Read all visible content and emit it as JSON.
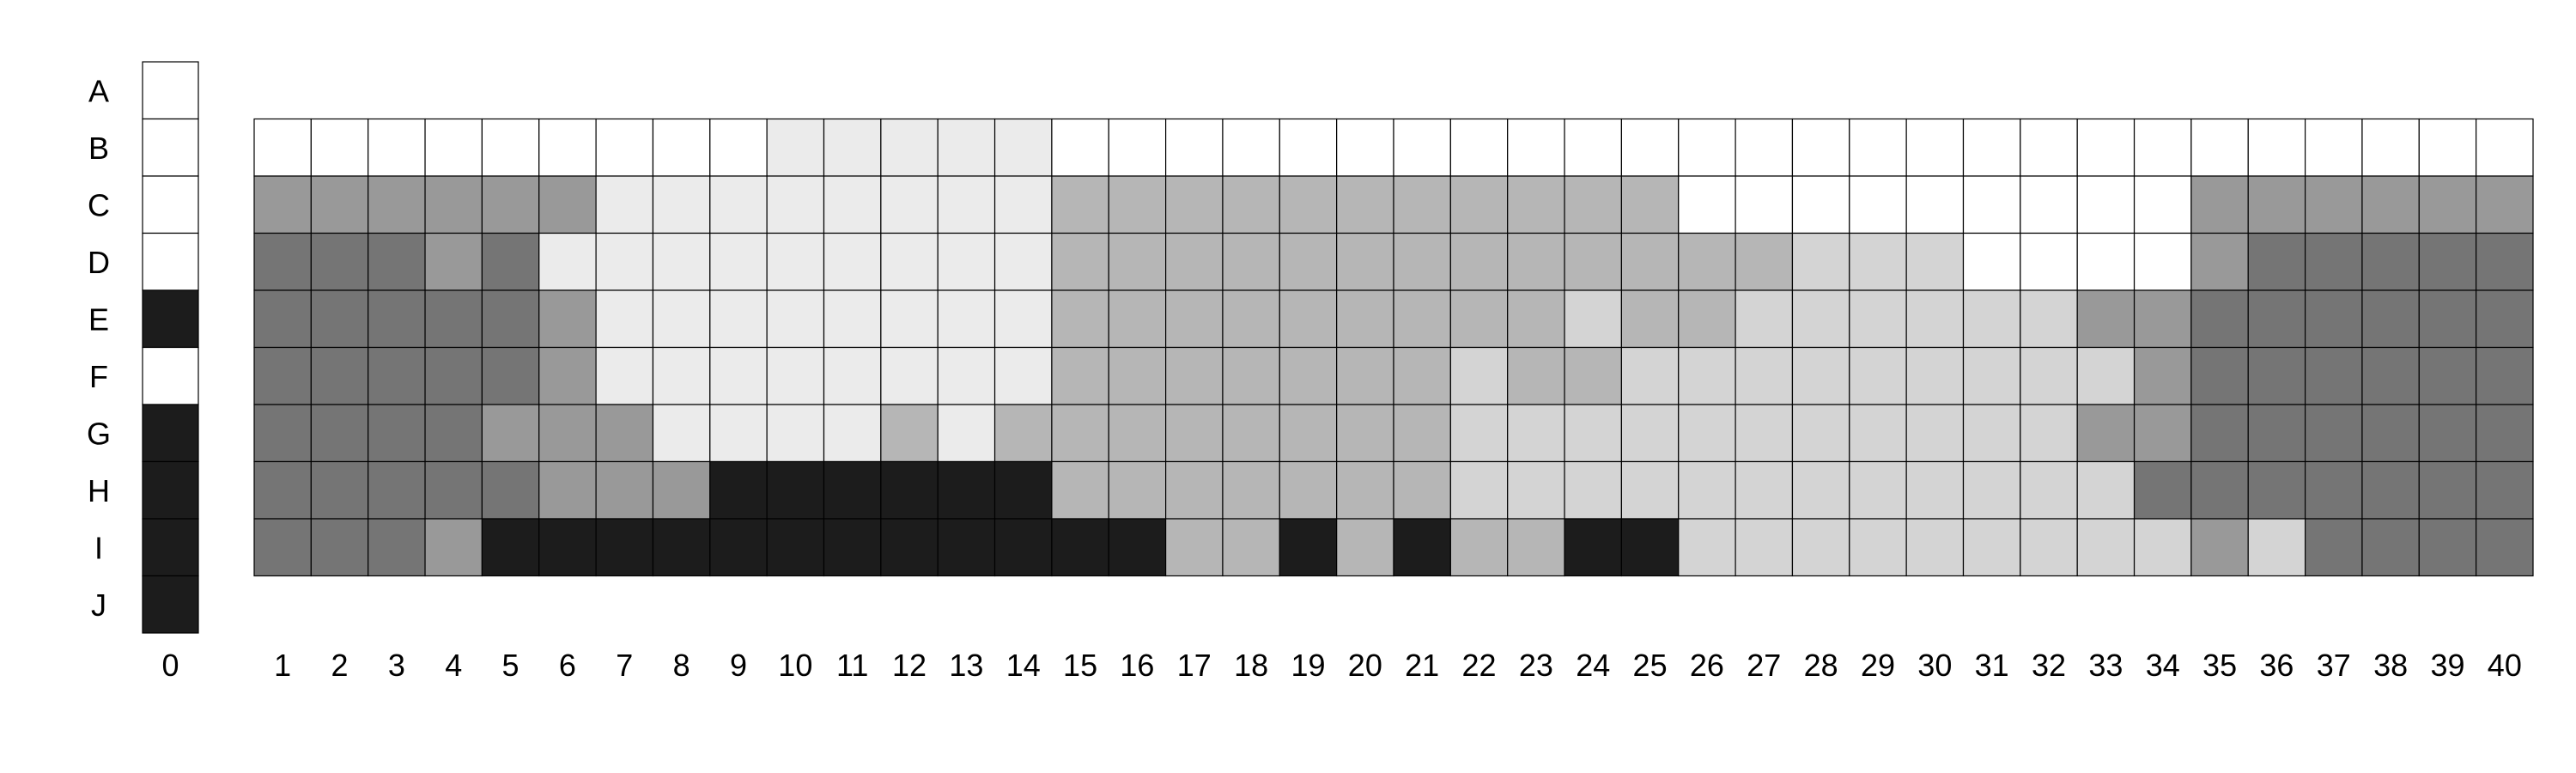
{
  "chart_data": {
    "type": "heatmap",
    "row_labels": [
      "A",
      "B",
      "C",
      "D",
      "E",
      "F",
      "G",
      "H",
      "I",
      "J"
    ],
    "column_labels": [
      "0",
      "1",
      "2",
      "3",
      "4",
      "5",
      "6",
      "7",
      "8",
      "9",
      "10",
      "11",
      "12",
      "13",
      "14",
      "15",
      "16",
      "17",
      "18",
      "19",
      "20",
      "21",
      "22",
      "23",
      "24",
      "25",
      "26",
      "27",
      "28",
      "29",
      "30",
      "31",
      "32",
      "33",
      "34",
      "35",
      "36",
      "37",
      "38",
      "39",
      "40"
    ],
    "legend": "none",
    "grid": true,
    "palette": {
      "0": "#ffffff",
      "1": "#ebebeb",
      "2": "#d4d4d4",
      "3": "#b6b6b6",
      "4": "#999999",
      "5": "#757575",
      "6": "#1c1c1c"
    },
    "key_column": {
      "label": "0",
      "values": [
        0,
        0,
        0,
        0,
        6,
        0,
        6,
        6,
        6,
        6
      ]
    },
    "grid_rows": {
      "B": [
        0,
        0,
        0,
        0,
        0,
        0,
        0,
        0,
        0,
        1,
        1,
        1,
        1,
        1,
        0,
        0,
        0,
        0,
        0,
        0,
        0,
        0,
        0,
        0,
        0,
        0,
        0,
        0,
        0,
        0,
        0,
        0,
        0,
        0,
        0,
        0,
        0,
        0,
        0,
        0
      ],
      "C": [
        4,
        4,
        4,
        4,
        4,
        4,
        1,
        1,
        1,
        1,
        1,
        1,
        1,
        1,
        3,
        3,
        3,
        3,
        3,
        3,
        3,
        3,
        3,
        3,
        3,
        0,
        0,
        0,
        0,
        0,
        0,
        0,
        0,
        0,
        4,
        4,
        4,
        4,
        4,
        4
      ],
      "D": [
        5,
        5,
        5,
        4,
        5,
        1,
        1,
        1,
        1,
        1,
        1,
        1,
        1,
        1,
        3,
        3,
        3,
        3,
        3,
        3,
        3,
        3,
        3,
        3,
        3,
        3,
        3,
        2,
        2,
        2,
        0,
        0,
        0,
        0,
        4,
        5,
        5,
        5,
        5,
        5
      ],
      "E": [
        5,
        5,
        5,
        5,
        5,
        4,
        1,
        1,
        1,
        1,
        1,
        1,
        1,
        1,
        3,
        3,
        3,
        3,
        3,
        3,
        3,
        3,
        3,
        2,
        3,
        3,
        2,
        2,
        2,
        2,
        2,
        2,
        4,
        4,
        5,
        5,
        5,
        5,
        5,
        5
      ],
      "F": [
        5,
        5,
        5,
        5,
        5,
        4,
        1,
        1,
        1,
        1,
        1,
        1,
        1,
        1,
        3,
        3,
        3,
        3,
        3,
        3,
        3,
        2,
        3,
        3,
        2,
        2,
        2,
        2,
        2,
        2,
        2,
        2,
        2,
        4,
        5,
        5,
        5,
        5,
        5,
        5
      ],
      "G": [
        5,
        5,
        5,
        5,
        4,
        4,
        4,
        1,
        1,
        1,
        1,
        3,
        1,
        3,
        3,
        3,
        3,
        3,
        3,
        3,
        3,
        2,
        2,
        2,
        2,
        2,
        2,
        2,
        2,
        2,
        2,
        2,
        4,
        4,
        5,
        5,
        5,
        5,
        5,
        5
      ],
      "H": [
        5,
        5,
        5,
        5,
        5,
        4,
        4,
        4,
        6,
        6,
        6,
        6,
        6,
        6,
        3,
        3,
        3,
        3,
        3,
        3,
        3,
        2,
        2,
        2,
        2,
        2,
        2,
        2,
        2,
        2,
        2,
        2,
        2,
        5,
        5,
        5,
        5,
        5,
        5,
        5
      ],
      "I": [
        5,
        5,
        5,
        4,
        6,
        6,
        6,
        6,
        6,
        6,
        6,
        6,
        6,
        6,
        6,
        6,
        3,
        3,
        6,
        3,
        6,
        3,
        3,
        6,
        6,
        2,
        2,
        2,
        2,
        2,
        2,
        2,
        2,
        2,
        4,
        2,
        5,
        5,
        5,
        5
      ]
    }
  }
}
